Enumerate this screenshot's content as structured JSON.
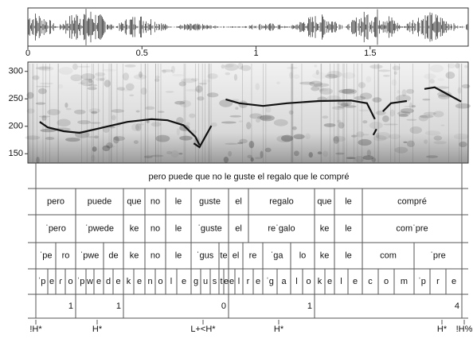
{
  "time_axis": {
    "xlim": [
      0,
      1.93
    ],
    "ticks": [
      0,
      0.5,
      1,
      1.5
    ]
  },
  "pitch_axis": {
    "ylim": [
      133,
      317
    ],
    "ticks": [
      150,
      200,
      250,
      300
    ]
  },
  "pitch_contour": {
    "t": [
      0.052,
      0.087,
      0.157,
      0.227,
      0.332,
      0.437,
      0.542,
      0.612,
      0.682,
      0.734,
      0.752,
      null,
      0.727,
      0.752,
      0.804,
      null,
      0.867,
      0.927,
      1.031,
      1.136,
      1.276,
      1.416,
      1.486,
      1.521,
      null,
      1.514,
      1.528,
      null,
      1.556,
      1.591,
      1.661,
      null,
      1.738,
      1.783,
      1.836,
      1.899
    ],
    "hz": [
      208,
      198,
      191,
      188,
      198,
      208,
      213,
      211,
      202,
      181,
      166,
      null,
      169,
      162,
      201,
      null,
      249,
      242,
      237,
      242,
      246,
      247,
      242,
      213,
      null,
      184,
      195,
      null,
      227,
      242,
      246,
      null,
      268,
      271,
      259,
      245
    ]
  },
  "tiers": [
    [
      "pero puede que no le guste el regalo que le compré"
    ],
    [
      "pero",
      "puede",
      "que",
      "no",
      "le",
      "guste",
      "el",
      "regalo",
      "que",
      "le",
      "compré"
    ],
    [
      "ˈpero",
      "ˈpwede",
      "ke",
      "no",
      "le",
      "ˈguste",
      "el",
      "reˈgalo",
      "ke",
      "le",
      "comˈpre"
    ],
    [
      "ˈpe",
      "ro",
      "ˈpwe",
      "de",
      "ke",
      "no",
      "le",
      "ˈgus",
      "te",
      "el",
      "re",
      "ˈga",
      "lo",
      "ke",
      "le",
      "com",
      "ˈpre"
    ],
    [
      "ˈp",
      "e",
      "ɾ",
      "o",
      "ˈp",
      "w",
      "e",
      "d",
      "e",
      "k",
      "e",
      "n",
      "o",
      "l",
      "e",
      "g",
      "u",
      "s",
      "t",
      "e",
      "e",
      "l",
      "r",
      "e",
      "ˈg",
      "a",
      "l",
      "o",
      "k",
      "e",
      "l",
      "e",
      "c",
      "o",
      "m",
      "ˈp",
      "r",
      "e"
    ],
    [
      1,
      1,
      0,
      1,
      4
    ],
    [
      "!H*",
      "H*",
      "L+<H*",
      "H*",
      "H*",
      "!H%"
    ]
  ]
}
